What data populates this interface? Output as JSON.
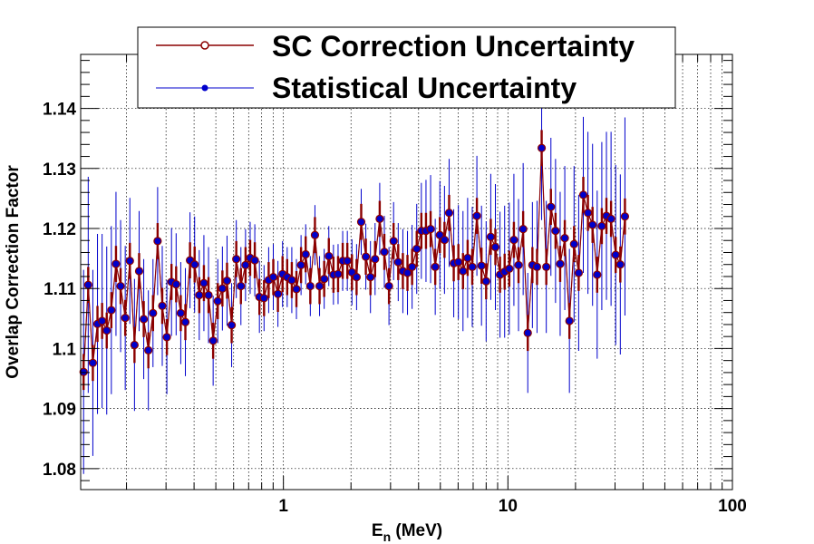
{
  "chart_data": {
    "type": "scatter",
    "title": "",
    "xlabel": "E",
    "xlabel_sub": "n",
    "xlabel_unit": " (MeV)",
    "ylabel": "Overlap Correction Factor",
    "xscale": "log",
    "xlim": [
      0.125,
      100
    ],
    "ylim": [
      1.0765,
      1.149
    ],
    "grid": true,
    "legend_position": "top",
    "x_ticks": [
      {
        "value": 1,
        "label": "1"
      },
      {
        "value": 10,
        "label": "10"
      },
      {
        "value": 100,
        "label": "100"
      }
    ],
    "y_ticks": [
      {
        "value": 1.08,
        "label": "1.08"
      },
      {
        "value": 1.09,
        "label": "1.09"
      },
      {
        "value": 1.1,
        "label": "1.1"
      },
      {
        "value": 1.11,
        "label": "1.11"
      },
      {
        "value": 1.12,
        "label": "1.12"
      },
      {
        "value": 1.13,
        "label": "1.13"
      },
      {
        "value": 1.14,
        "label": "1.14"
      }
    ],
    "x_start": 0.1288,
    "x_step_factor": 1.0486,
    "series": [
      {
        "name": "SC Correction Uncertainty",
        "color": "#8b0000",
        "marker": "open-circle",
        "error_kind": "small"
      },
      {
        "name": "Statistical Uncertainty",
        "color": "#0000cc",
        "marker": "filled-circle",
        "error_kind": "large"
      }
    ],
    "y_values": [
      1.0961,
      1.1106,
      1.0976,
      1.1041,
      1.1046,
      1.103,
      1.1064,
      1.1141,
      1.1104,
      1.1051,
      1.1146,
      1.1006,
      1.1129,
      1.1049,
      1.0997,
      1.1059,
      1.1179,
      1.1071,
      1.1019,
      1.1111,
      1.1107,
      1.1059,
      1.1044,
      1.1147,
      1.114,
      1.1089,
      1.1109,
      1.1089,
      1.1013,
      1.1079,
      1.11,
      1.1113,
      1.1039,
      1.1149,
      1.1104,
      1.1139,
      1.1151,
      1.1147,
      1.1086,
      1.1084,
      1.1114,
      1.1119,
      1.1091,
      1.1124,
      1.1119,
      1.1114,
      1.1099,
      1.1139,
      1.1157,
      1.1104,
      1.1189,
      1.1104,
      1.1116,
      1.1154,
      1.1123,
      1.1124,
      1.1146,
      1.1146,
      1.1127,
      1.1119,
      1.1211,
      1.1153,
      1.1119,
      1.1149,
      1.1216,
      1.1161,
      1.1104,
      1.1179,
      1.1144,
      1.1129,
      1.1126,
      1.1136,
      1.1166,
      1.1196,
      1.1196,
      1.1199,
      1.1136,
      1.1189,
      1.1181,
      1.1226,
      1.1142,
      1.1144,
      1.1129,
      1.1151,
      1.1136,
      1.1221,
      1.1138,
      1.1112,
      1.1186,
      1.1169,
      1.1123,
      1.1128,
      1.1133,
      1.1181,
      1.1139,
      1.1199,
      1.1026,
      1.1139,
      1.1136,
      1.1334,
      1.1136,
      1.1236,
      1.1196,
      1.1141,
      1.1184,
      1.1046,
      1.1174,
      1.1126,
      1.1256,
      1.1226,
      1.1206,
      1.1123,
      1.1204,
      1.1221,
      1.1216,
      1.1156,
      1.114,
      1.122
    ],
    "stat_err": [
      0.017,
      0.018,
      0.0155,
      0.015,
      0.0145,
      0.014,
      0.014,
      0.012,
      0.011,
      0.012,
      0.0105,
      0.011,
      0.01,
      0.01,
      0.01,
      0.009,
      0.009,
      0.01,
      0.0095,
      0.009,
      0.0085,
      0.0085,
      0.009,
      0.008,
      0.008,
      0.0075,
      0.008,
      0.008,
      0.0075,
      0.007,
      0.007,
      0.0075,
      0.007,
      0.0065,
      0.0065,
      0.006,
      0.006,
      0.006,
      0.006,
      0.0055,
      0.0055,
      0.0055,
      0.0055,
      0.0055,
      0.005,
      0.0055,
      0.005,
      0.005,
      0.005,
      0.005,
      0.005,
      0.005,
      0.005,
      0.005,
      0.005,
      0.005,
      0.005,
      0.005,
      0.0055,
      0.0055,
      0.0055,
      0.0055,
      0.006,
      0.006,
      0.006,
      0.006,
      0.0065,
      0.0065,
      0.0065,
      0.007,
      0.007,
      0.007,
      0.0075,
      0.008,
      0.0085,
      0.009,
      0.008,
      0.009,
      0.009,
      0.009,
      0.009,
      0.0095,
      0.01,
      0.01,
      0.01,
      0.01,
      0.01,
      0.01,
      0.0105,
      0.0105,
      0.0105,
      0.011,
      0.011,
      0.011,
      0.011,
      0.011,
      0.01,
      0.0105,
      0.011,
      0.012,
      0.011,
      0.0115,
      0.012,
      0.012,
      0.012,
      0.012,
      0.013,
      0.013,
      0.013,
      0.0135,
      0.0135,
      0.014,
      0.014,
      0.014,
      0.0145,
      0.015,
      0.015,
      0.0165
    ],
    "sc_err": [
      0.003,
      0.003,
      0.003,
      0.003,
      0.003,
      0.003,
      0.003,
      0.003,
      0.003,
      0.003,
      0.003,
      0.003,
      0.003,
      0.003,
      0.003,
      0.003,
      0.003,
      0.003,
      0.003,
      0.003,
      0.003,
      0.003,
      0.003,
      0.003,
      0.003,
      0.003,
      0.003,
      0.003,
      0.003,
      0.003,
      0.003,
      0.003,
      0.003,
      0.003,
      0.003,
      0.003,
      0.003,
      0.003,
      0.003,
      0.003,
      0.003,
      0.003,
      0.003,
      0.003,
      0.003,
      0.003,
      0.003,
      0.003,
      0.003,
      0.003,
      0.003,
      0.003,
      0.003,
      0.003,
      0.003,
      0.003,
      0.003,
      0.003,
      0.003,
      0.003,
      0.003,
      0.003,
      0.003,
      0.003,
      0.003,
      0.003,
      0.003,
      0.003,
      0.003,
      0.003,
      0.003,
      0.003,
      0.003,
      0.003,
      0.003,
      0.003,
      0.003,
      0.003,
      0.003,
      0.003,
      0.003,
      0.003,
      0.003,
      0.003,
      0.003,
      0.003,
      0.003,
      0.003,
      0.003,
      0.003,
      0.003,
      0.003,
      0.003,
      0.003,
      0.003,
      0.003,
      0.003,
      0.003,
      0.003,
      0.003,
      0.003,
      0.003,
      0.003,
      0.003,
      0.003,
      0.003,
      0.003,
      0.003,
      0.003,
      0.003,
      0.003,
      0.003,
      0.003,
      0.003,
      0.003,
      0.003,
      0.003,
      0.003,
      0.003
    ]
  }
}
